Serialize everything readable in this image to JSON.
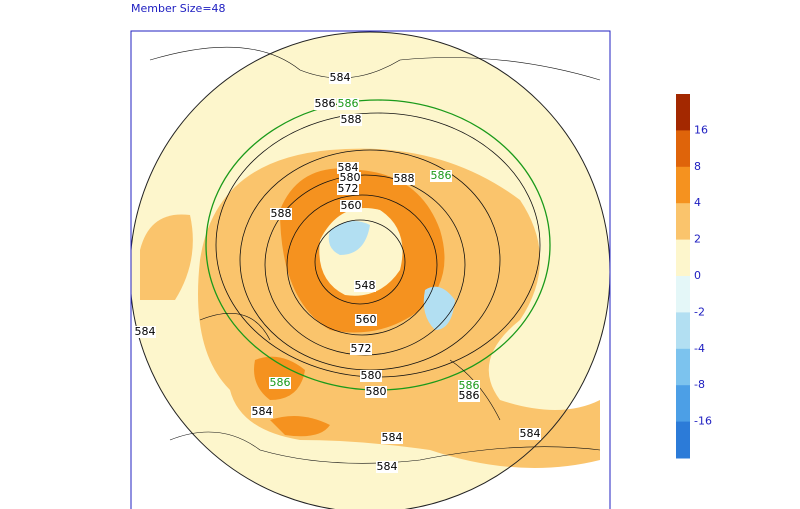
{
  "header": {
    "title": "Member Size=48"
  },
  "colorbar": {
    "colors": [
      "#a32800",
      "#df640a",
      "#f5921f",
      "#fac46c",
      "#fdf6cc",
      "#e4f7f8",
      "#b2dff2",
      "#7cc3ee",
      "#4c9fe6",
      "#2c7bd8"
    ],
    "ticks": [
      16,
      8,
      4,
      2,
      0,
      -2,
      -4,
      -8,
      -16
    ]
  },
  "contour_labels": [
    "584",
    "586",
    "586",
    "588",
    "584",
    "580",
    "572",
    "588",
    "586",
    "588",
    "560",
    "548",
    "560",
    "572",
    "580",
    "580",
    "586",
    "586",
    "586",
    "584",
    "584",
    "584",
    "584",
    "584"
  ]
}
